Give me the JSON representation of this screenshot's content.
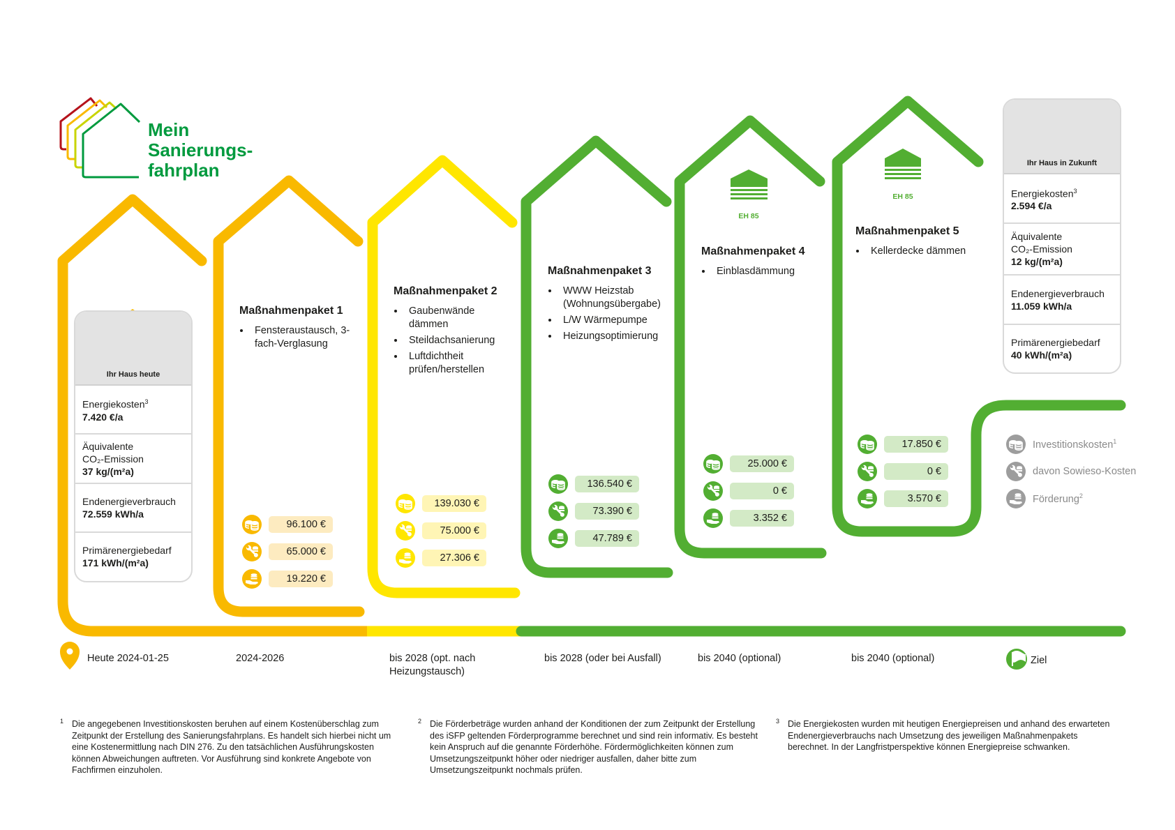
{
  "header": {
    "title_lines": [
      "Mein",
      "Sanierungs-",
      "fahrplan"
    ]
  },
  "colors": {
    "red": "#b5121b",
    "orange": "#f9b900",
    "yellow": "#ffe600",
    "green": "#52ae32",
    "title_green": "#009a3e",
    "gray": "#9d9d9d"
  },
  "current_house": {
    "title": "Ihr Haus heute",
    "rows": [
      {
        "label": "Energiekosten",
        "sup": "3",
        "value": "7.420 €/a"
      },
      {
        "label": "Äquivalente",
        "label2": "CO₂-Emission",
        "value": "37 kg/(m²a)"
      },
      {
        "label": "Endenergieverbrauch",
        "value": "72.559 kWh/a"
      },
      {
        "label": "Primärenergiebedarf",
        "value": "171 kWh/(m²a)"
      }
    ]
  },
  "future_house": {
    "title": "Ihr Haus in Zukunft",
    "rows": [
      {
        "label": "Energiekosten",
        "sup": "3",
        "value": "2.594 €/a"
      },
      {
        "label": "Äquivalente",
        "label2": "CO₂-Emission",
        "value": "12 kg/(m²a)"
      },
      {
        "label": "Endenergieverbrauch",
        "value": "11.059 kWh/a"
      },
      {
        "label": "Primärenergiebedarf",
        "value": "40 kWh/(m²a)"
      }
    ]
  },
  "packages": [
    {
      "title": "Maßnahmenpaket 1",
      "items": [
        "Fensteraustausch, 3-fach-Verglasung"
      ],
      "investment": "96.100 €",
      "sowieso": "65.000 €",
      "funding": "19.220 €",
      "color": "#f9b900"
    },
    {
      "title": "Maßnahmenpaket 2",
      "items": [
        "Gaubenwände dämmen",
        "Steildachsanierung",
        "Luftdichtheit prüfen/herstellen"
      ],
      "investment": "139.030 €",
      "sowieso": "75.000 €",
      "funding": "27.306 €",
      "color": "#ffe600"
    },
    {
      "title": "Maßnahmenpaket 3",
      "items": [
        "WWW Heizstab (Wohnungsübergabe)",
        "L/W Wärmepumpe",
        "Heizungsoptimierung"
      ],
      "investment": "136.540 €",
      "sowieso": "73.390 €",
      "funding": "47.789 €",
      "color": "#52ae32"
    },
    {
      "title": "Maßnahmenpaket 4",
      "badge": "EH 85",
      "items": [
        "Einblasdämmung"
      ],
      "investment": "25.000 €",
      "sowieso": "0 €",
      "funding": "3.352 €",
      "color": "#52ae32"
    },
    {
      "title": "Maßnahmenpaket 5",
      "badge": "EH 85",
      "items": [
        "Kellerdecke dämmen"
      ],
      "investment": "17.850 €",
      "sowieso": "0 €",
      "funding": "3.570 €",
      "color": "#52ae32"
    }
  ],
  "legend": [
    {
      "label": "Investitionskosten",
      "sup": "1",
      "icon": "coins-icon"
    },
    {
      "label": "davon Sowieso-Kosten",
      "icon": "wrench-coins-icon"
    },
    {
      "label": "Förderung",
      "sup": "2",
      "icon": "hand-coins-icon"
    }
  ],
  "timeline": {
    "start": "Heute 2024-01-25",
    "steps": [
      "2024-2026",
      "bis 2028 (opt. nach Heizungstausch)",
      "bis 2028 (oder bei Ausfall)",
      "bis 2040 (optional)",
      "bis 2040 (optional)"
    ],
    "goal": "Ziel"
  },
  "footnotes": [
    {
      "n": "1",
      "text": "Die angegebenen Investitionskosten beruhen auf einem Kostenüberschlag zum Zeitpunkt der Erstellung des Sanierungsfahrplans. Es handelt sich hierbei nicht um eine Kostenermittlung nach DIN 276. Zu den tatsächlichen Ausführungskosten können Abweichungen auftreten. Vor Ausführung sind konkrete Angebote von Fachfirmen einzuholen."
    },
    {
      "n": "2",
      "text": "Die Förderbeträge wurden anhand der Konditionen der zum Zeitpunkt der Erstellung des iSFP geltenden Förderprogramme berechnet und sind rein informativ. Es besteht kein Anspruch auf die genannte Förderhöhe. Fördermöglichkeiten können zum Umsetzungszeitpunkt höher oder niedriger ausfallen, daher bitte zum Umsetzungszeitpunkt nochmals prüfen."
    },
    {
      "n": "3",
      "text": "Die Energiekosten wurden mit heutigen Energiepreisen und anhand des erwarteten Endenergieverbrauchs nach Umsetzung des jeweiligen Maßnahmenpakets berechnet. In der Langfristperspektive können Energiepreise schwanken."
    }
  ]
}
